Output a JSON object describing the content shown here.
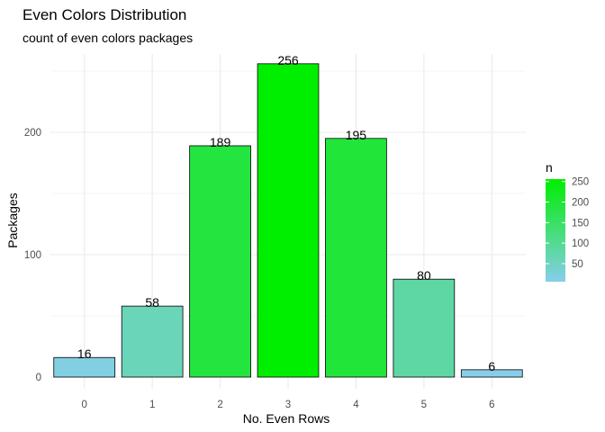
{
  "chart_data": {
    "type": "bar",
    "title": "Even Colors Distribution",
    "subtitle": "count of even colors packages",
    "xlabel": "No. Even Rows",
    "ylabel": "Packages",
    "categories": [
      "0",
      "1",
      "2",
      "3",
      "4",
      "5",
      "6"
    ],
    "values": [
      16,
      58,
      189,
      256,
      195,
      80,
      6
    ],
    "data_labels": [
      "16",
      "58",
      "189",
      "256",
      "195",
      "80",
      "6"
    ],
    "ylim": [
      0,
      270
    ],
    "y_ticks": [
      0,
      100,
      200
    ],
    "grid": true,
    "legend": {
      "title": "n",
      "position": "right",
      "type": "gradient",
      "range": [
        6,
        256
      ],
      "ticks": [
        50,
        100,
        150,
        200,
        250
      ],
      "color_low": "#87CEEB",
      "color_high": "#00EE00"
    },
    "colors": {
      "gradient_low": "#87CEEB",
      "gradient_high": "#00EE00",
      "bar_outline": "#000000",
      "grid": "#ebebeb"
    }
  }
}
